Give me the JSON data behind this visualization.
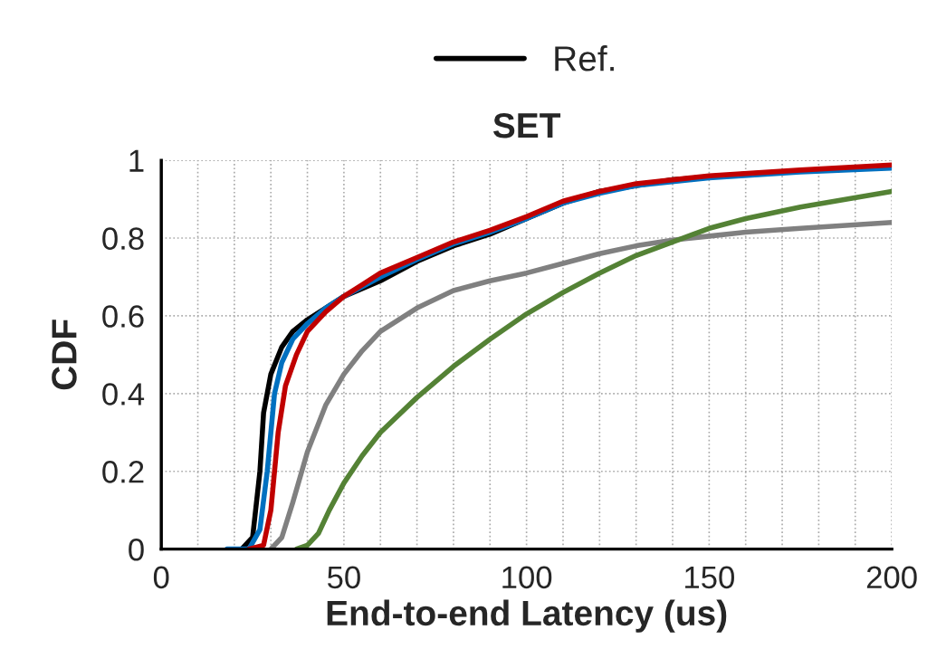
{
  "chart_data": {
    "type": "line",
    "title": "SET",
    "xlabel": "End-to-end Latency (us)",
    "ylabel": "CDF",
    "xlim": [
      0,
      200
    ],
    "ylim": [
      0,
      1
    ],
    "xticks": [
      0,
      {
        "value": 10,
        "label": null
      },
      {
        "value": 20,
        "label": null
      },
      {
        "value": 30,
        "label": null
      },
      {
        "value": 40,
        "label": null
      },
      50,
      {
        "value": 60,
        "label": null
      },
      {
        "value": 70,
        "label": null
      },
      {
        "value": 80,
        "label": null
      },
      {
        "value": 90,
        "label": null
      },
      100,
      {
        "value": 110,
        "label": null
      },
      {
        "value": 120,
        "label": null
      },
      {
        "value": 130,
        "label": null
      },
      {
        "value": 140,
        "label": null
      },
      150,
      {
        "value": 160,
        "label": null
      },
      {
        "value": 170,
        "label": null
      },
      {
        "value": 180,
        "label": null
      },
      {
        "value": 190,
        "label": null
      },
      200
    ],
    "yticks": [
      0,
      0.2,
      0.4,
      0.6,
      0.8,
      1
    ],
    "grid": true,
    "legend": "top",
    "line_style": "solid",
    "marker": "none",
    "series": [
      {
        "name": "Ref.",
        "color": "#000000",
        "x": [
          22,
          25,
          27,
          28,
          30,
          33,
          36,
          40,
          45,
          50,
          60,
          70,
          80,
          90,
          100,
          110,
          120,
          140,
          160,
          180
        ],
        "values": [
          0,
          0.03,
          0.2,
          0.35,
          0.45,
          0.52,
          0.56,
          0.59,
          0.62,
          0.65,
          0.69,
          0.74,
          0.78,
          0.81,
          0.85,
          0.89,
          0.92,
          0.95,
          0.965,
          0.975
        ]
      },
      {
        "color": "#0070c0",
        "x": [
          18,
          24,
          27,
          29,
          31,
          33,
          36,
          40,
          45,
          50,
          60,
          70,
          80,
          90,
          100,
          105,
          110,
          120,
          130,
          150,
          175,
          200
        ],
        "values": [
          0,
          0,
          0.05,
          0.2,
          0.4,
          0.48,
          0.54,
          0.58,
          0.62,
          0.65,
          0.7,
          0.745,
          0.785,
          0.815,
          0.85,
          0.87,
          0.89,
          0.915,
          0.935,
          0.955,
          0.97,
          0.98
        ]
      },
      {
        "color": "#808080",
        "x": [
          30,
          33,
          36,
          40,
          45,
          50,
          55,
          60,
          70,
          80,
          90,
          100,
          110,
          120,
          130,
          140,
          150,
          160,
          175,
          200
        ],
        "values": [
          0,
          0.03,
          0.12,
          0.25,
          0.37,
          0.45,
          0.51,
          0.56,
          0.62,
          0.665,
          0.69,
          0.71,
          0.735,
          0.76,
          0.78,
          0.795,
          0.805,
          0.815,
          0.825,
          0.84
        ]
      },
      {
        "color": "#548235",
        "x": [
          37,
          40,
          43,
          46,
          50,
          55,
          60,
          70,
          80,
          90,
          100,
          110,
          120,
          130,
          140,
          150,
          160,
          175,
          200
        ],
        "values": [
          0,
          0.01,
          0.04,
          0.1,
          0.17,
          0.24,
          0.3,
          0.39,
          0.47,
          0.54,
          0.605,
          0.66,
          0.71,
          0.755,
          0.79,
          0.825,
          0.85,
          0.88,
          0.92
        ]
      },
      {
        "color": "#c00000",
        "x": [
          24,
          28,
          30,
          32,
          34,
          37,
          40,
          45,
          50,
          55,
          60,
          70,
          80,
          90,
          100,
          105,
          110,
          120,
          130,
          150,
          175,
          200
        ],
        "values": [
          0,
          0.01,
          0.1,
          0.3,
          0.42,
          0.5,
          0.56,
          0.61,
          0.65,
          0.68,
          0.71,
          0.75,
          0.79,
          0.82,
          0.855,
          0.875,
          0.895,
          0.92,
          0.94,
          0.96,
          0.975,
          0.988
        ]
      }
    ]
  }
}
